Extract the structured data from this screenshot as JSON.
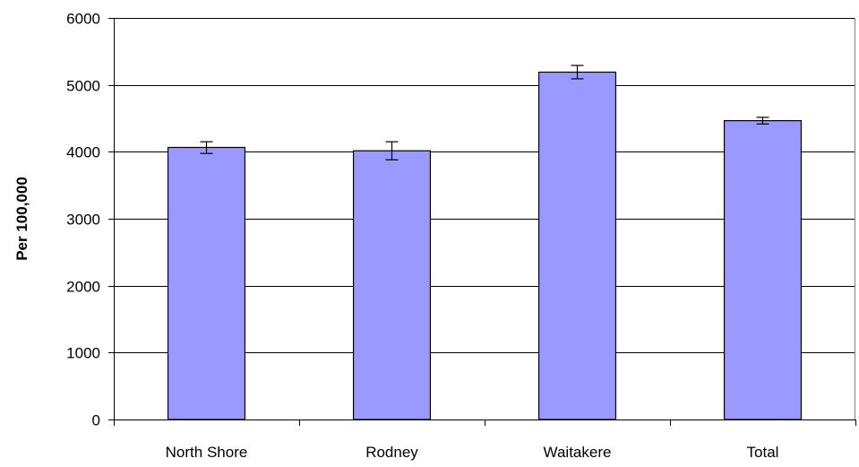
{
  "chart_data": {
    "type": "bar",
    "title": "",
    "xlabel": "",
    "ylabel": "Per 100,000",
    "categories": [
      "North Shore",
      "Rodney",
      "Waitakere",
      "Total"
    ],
    "values": [
      4065,
      4015,
      5190,
      4465
    ],
    "error_bars": [
      {
        "low": 3975,
        "high": 4150
      },
      {
        "low": 3880,
        "high": 4150
      },
      {
        "low": 5090,
        "high": 5290
      },
      {
        "low": 4415,
        "high": 4515
      }
    ],
    "ylim": [
      0,
      6000
    ],
    "yticks": [
      "0",
      "1000",
      "2000",
      "3000",
      "4000",
      "5000",
      "6000"
    ],
    "grid": "horizontal",
    "legend": "none",
    "bar_color": "#9999ff",
    "bar_edge_color": "#000000",
    "gridline_color": "#000000",
    "plot_border_color": "#808080"
  }
}
